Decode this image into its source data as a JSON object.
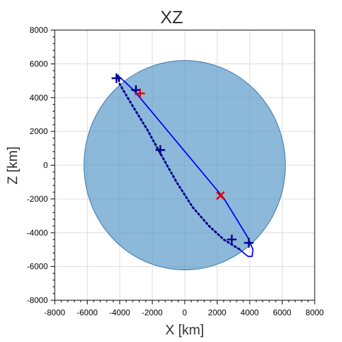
{
  "chart_data": {
    "type": "scatter",
    "title": "XZ",
    "xlabel": "X [km]",
    "ylabel": "Z [km]",
    "xlim": [
      -8000,
      8000
    ],
    "ylim": [
      -8000,
      8000
    ],
    "grid": true,
    "xticks": [
      -8000,
      -6000,
      -4000,
      -2000,
      0,
      2000,
      4000,
      6000,
      8000
    ],
    "yticks": [
      -8000,
      -6000,
      -4000,
      -2000,
      0,
      2000,
      4000,
      6000,
      8000
    ],
    "xtick_labels": [
      "-8000",
      "-6000",
      "-4000",
      "-2000",
      "0",
      "2000",
      "4000",
      "6000",
      "8000"
    ],
    "ytick_labels": [
      "-8000",
      "-6000",
      "-4000",
      "-2000",
      "0",
      "2000",
      "4000",
      "6000",
      "8000"
    ],
    "earth_disk": {
      "center": [
        0,
        0
      ],
      "radius": 6200,
      "color": "#5b9ac9",
      "opacity": 0.7
    },
    "orbit_solid": {
      "color": "#0000ff",
      "points": [
        [
          -4100,
          5300
        ],
        [
          -3700,
          4950
        ],
        [
          -3200,
          4500
        ],
        [
          -2800,
          4050
        ],
        [
          2400,
          -1950
        ],
        [
          3200,
          -3200
        ],
        [
          3900,
          -4300
        ],
        [
          4200,
          -5000
        ],
        [
          4150,
          -5400
        ],
        [
          3900,
          -5400
        ],
        [
          3700,
          -5250
        ],
        [
          3400,
          -5000
        ]
      ]
    },
    "orbit_dotted": {
      "color": "#00008b",
      "points": [
        [
          -4100,
          5300
        ],
        [
          -4000,
          4800
        ],
        [
          -3200,
          3500
        ],
        [
          -2300,
          2100
        ],
        [
          -1500,
          700
        ],
        [
          -500,
          -1000
        ],
        [
          500,
          -2500
        ],
        [
          1500,
          -3600
        ],
        [
          2400,
          -4400
        ],
        [
          3400,
          -5000
        ]
      ]
    },
    "plus_markers": {
      "color": "#00008b",
      "points": [
        [
          -4200,
          5150
        ],
        [
          -3000,
          4450
        ],
        [
          -1500,
          900
        ],
        [
          2900,
          -4400
        ],
        [
          3950,
          -4600
        ]
      ]
    },
    "red_plus_markers": {
      "color": "#e00000",
      "points": [
        [
          -2750,
          4250
        ]
      ]
    },
    "red_x_markers": {
      "color": "#e00000",
      "points": [
        [
          2200,
          -1800
        ]
      ]
    }
  }
}
